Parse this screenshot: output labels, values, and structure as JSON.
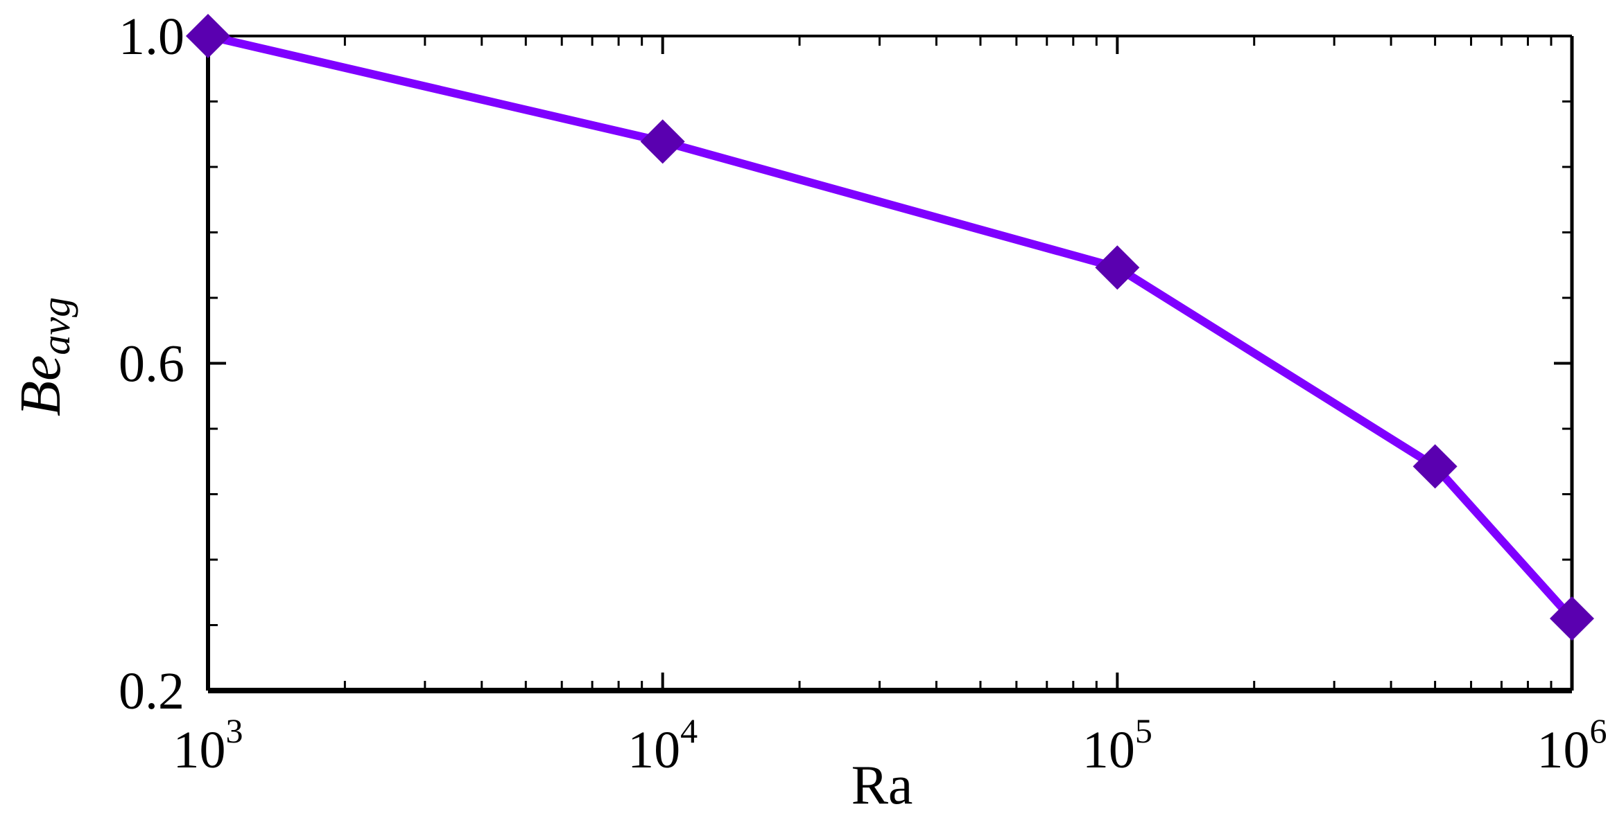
{
  "chart_data": {
    "type": "line",
    "title": "",
    "xlabel": "Ra",
    "ylabel": {
      "main": "Be",
      "subscript": "avg"
    },
    "x_scale": "log",
    "xlim": [
      1000,
      1000000
    ],
    "ylim": [
      0.2,
      1.0
    ],
    "x_ticks": [
      {
        "value": 1000,
        "base": "10",
        "exp": "3"
      },
      {
        "value": 10000,
        "base": "10",
        "exp": "4"
      },
      {
        "value": 100000,
        "base": "10",
        "exp": "5"
      },
      {
        "value": 1000000,
        "base": "10",
        "exp": "6"
      }
    ],
    "y_ticks": [
      {
        "value": 0.2,
        "label": "0.2"
      },
      {
        "value": 0.6,
        "label": "0.6"
      },
      {
        "value": 1.0,
        "label": "1.0"
      }
    ],
    "y_minor_step": 0.08,
    "grid": false,
    "legend": "none",
    "series": [
      {
        "x": [
          1000,
          10000,
          100000,
          500000,
          1000000
        ],
        "y": [
          1.0,
          0.871,
          0.717,
          0.474,
          0.288
        ],
        "line_color": "#7f00ff",
        "marker": "diamond",
        "marker_color": "#5a00b0"
      }
    ]
  }
}
